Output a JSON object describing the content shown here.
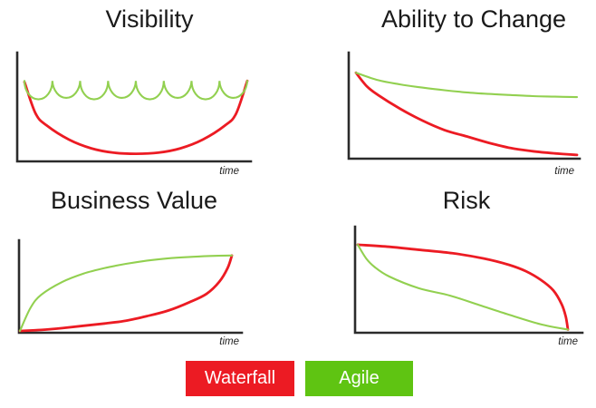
{
  "colors": {
    "waterfall": "#EC1B23",
    "agile_line": "#92D050",
    "agile_fill": "#5FC412",
    "axis": "#2B2B2B",
    "title_text": "#1A1A1A"
  },
  "legend": {
    "items": [
      {
        "label": "Waterfall",
        "color": "#EC1B23"
      },
      {
        "label": "Agile",
        "color": "#5FC412"
      }
    ]
  },
  "chart_data": [
    {
      "type": "line",
      "id": "visibility",
      "title": "Visibility",
      "xlabel": "time",
      "ylabel": "",
      "x_range": [
        0,
        1
      ],
      "y_range": [
        0,
        1
      ],
      "grid": false,
      "legend_position": "bottom-shared",
      "series": [
        {
          "name": "Waterfall",
          "color": "#EC1B23",
          "shape": "points",
          "description": "U-shaped: visibility high at start, drops to near zero mid-project, returns high at end",
          "points": [
            [
              0,
              0.73
            ],
            [
              0.05,
              0.44
            ],
            [
              0.1,
              0.33
            ],
            [
              0.2,
              0.2
            ],
            [
              0.3,
              0.12
            ],
            [
              0.4,
              0.08
            ],
            [
              0.5,
              0.07
            ],
            [
              0.6,
              0.08
            ],
            [
              0.7,
              0.12
            ],
            [
              0.8,
              0.2
            ],
            [
              0.9,
              0.33
            ],
            [
              0.95,
              0.44
            ],
            [
              1,
              0.74
            ]
          ]
        },
        {
          "name": "Agile",
          "color": "#92D050",
          "shape": "garland",
          "description": "Repeated scalloped arcs staying high: visibility restored every iteration",
          "scallops": 8,
          "peak_level": 0.74,
          "trough_level": 0.57,
          "scallop_depth": 0.17
        }
      ]
    },
    {
      "type": "line",
      "id": "ability-to-change",
      "title": "Ability to Change",
      "xlabel": "time",
      "ylabel": "",
      "x_range": [
        0,
        1
      ],
      "y_range": [
        0,
        1
      ],
      "grid": false,
      "legend_position": "bottom-shared",
      "series": [
        {
          "name": "Waterfall",
          "color": "#EC1B23",
          "shape": "points",
          "description": "Steep exponential decay to near zero",
          "points": [
            [
              0,
              0.81
            ],
            [
              0.05,
              0.68
            ],
            [
              0.1,
              0.6
            ],
            [
              0.2,
              0.47
            ],
            [
              0.3,
              0.36
            ],
            [
              0.4,
              0.27
            ],
            [
              0.5,
              0.21
            ],
            [
              0.6,
              0.15
            ],
            [
              0.7,
              0.1
            ],
            [
              0.8,
              0.07
            ],
            [
              0.9,
              0.05
            ],
            [
              1,
              0.035
            ]
          ]
        },
        {
          "name": "Agile",
          "color": "#92D050",
          "shape": "points",
          "description": "Gentle decay remaining high",
          "points": [
            [
              0,
              0.81
            ],
            [
              0.1,
              0.74
            ],
            [
              0.2,
              0.7
            ],
            [
              0.3,
              0.67
            ],
            [
              0.4,
              0.645
            ],
            [
              0.5,
              0.625
            ],
            [
              0.6,
              0.61
            ],
            [
              0.7,
              0.6
            ],
            [
              0.8,
              0.59
            ],
            [
              0.9,
              0.585
            ],
            [
              1,
              0.58
            ]
          ]
        }
      ]
    },
    {
      "type": "line",
      "id": "business-value",
      "title": "Business Value",
      "xlabel": "time",
      "ylabel": "",
      "x_range": [
        0,
        1
      ],
      "y_range": [
        0,
        1
      ],
      "grid": false,
      "legend_position": "bottom-shared",
      "series": [
        {
          "name": "Waterfall",
          "color": "#EC1B23",
          "shape": "points",
          "description": "Stays near zero then rises sharply at project end, meeting Agile endpoint",
          "points": [
            [
              0,
              0.02
            ],
            [
              0.1,
              0.03
            ],
            [
              0.2,
              0.05
            ],
            [
              0.3,
              0.075
            ],
            [
              0.4,
              0.1
            ],
            [
              0.5,
              0.13
            ],
            [
              0.6,
              0.18
            ],
            [
              0.7,
              0.24
            ],
            [
              0.8,
              0.33
            ],
            [
              0.88,
              0.42
            ],
            [
              0.94,
              0.55
            ],
            [
              0.98,
              0.7
            ],
            [
              1,
              0.835
            ]
          ]
        },
        {
          "name": "Agile",
          "color": "#92D050",
          "shape": "points",
          "description": "Rises quickly early and keeps growing to same endpoint",
          "points": [
            [
              0,
              0.02
            ],
            [
              0.05,
              0.27
            ],
            [
              0.1,
              0.41
            ],
            [
              0.2,
              0.55
            ],
            [
              0.3,
              0.64
            ],
            [
              0.4,
              0.7
            ],
            [
              0.5,
              0.745
            ],
            [
              0.6,
              0.78
            ],
            [
              0.7,
              0.805
            ],
            [
              0.8,
              0.82
            ],
            [
              0.9,
              0.83
            ],
            [
              1,
              0.835
            ]
          ]
        }
      ]
    },
    {
      "type": "line",
      "id": "risk",
      "title": "Risk",
      "xlabel": "time",
      "ylabel": "",
      "x_range": [
        0,
        1
      ],
      "y_range": [
        0,
        1
      ],
      "grid": false,
      "legend_position": "bottom-shared",
      "series": [
        {
          "name": "Waterfall",
          "color": "#EC1B23",
          "shape": "points",
          "description": "Stays high for most of the project then drops sharply at the end",
          "points": [
            [
              0,
              0.83
            ],
            [
              0.15,
              0.81
            ],
            [
              0.3,
              0.78
            ],
            [
              0.45,
              0.75
            ],
            [
              0.6,
              0.7
            ],
            [
              0.72,
              0.64
            ],
            [
              0.8,
              0.58
            ],
            [
              0.87,
              0.5
            ],
            [
              0.93,
              0.4
            ],
            [
              0.97,
              0.27
            ],
            [
              0.99,
              0.15
            ],
            [
              1,
              0.03
            ]
          ]
        },
        {
          "name": "Agile",
          "color": "#92D050",
          "shape": "points",
          "description": "Drops quickly early and tapers to near zero",
          "points": [
            [
              0,
              0.83
            ],
            [
              0.04,
              0.7
            ],
            [
              0.08,
              0.62
            ],
            [
              0.15,
              0.53
            ],
            [
              0.29,
              0.42
            ],
            [
              0.44,
              0.35
            ],
            [
              0.58,
              0.26
            ],
            [
              0.72,
              0.17
            ],
            [
              0.87,
              0.08
            ],
            [
              1,
              0.03
            ]
          ]
        }
      ]
    }
  ]
}
